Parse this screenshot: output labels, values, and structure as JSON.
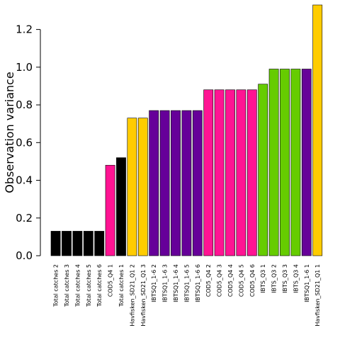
{
  "chart_data": {
    "type": "bar",
    "title": "",
    "xlabel": "",
    "ylabel": "Observation variance",
    "ylim": [
      0,
      1.33
    ],
    "yticks": [
      0.0,
      0.2,
      0.4,
      0.6,
      0.8,
      1.0,
      1.2
    ],
    "ytick_labels": [
      "0.0",
      "0.2",
      "0.4",
      "0.6",
      "0.8",
      "1.0",
      "1.2"
    ],
    "grid": false,
    "legend": "none",
    "bars": [
      {
        "category": "Total catches 2",
        "value": 0.13,
        "color": "#000000"
      },
      {
        "category": "Total catches 3",
        "value": 0.13,
        "color": "#000000"
      },
      {
        "category": "Total catches 4",
        "value": 0.13,
        "color": "#000000"
      },
      {
        "category": "Total catches 5",
        "value": 0.13,
        "color": "#000000"
      },
      {
        "category": "Total catches 6",
        "value": 0.13,
        "color": "#000000"
      },
      {
        "category": "COD5_Q4 1",
        "value": 0.48,
        "color": "#FF1493"
      },
      {
        "category": "Total catches 1",
        "value": 0.52,
        "color": "#000000"
      },
      {
        "category": "Havfisken_SD21_Q1 2",
        "value": 0.73,
        "color": "#FFCC00"
      },
      {
        "category": "Havfisken_SD21_Q1 3",
        "value": 0.73,
        "color": "#FFCC00"
      },
      {
        "category": "IBTSQ1_1-6 2",
        "value": 0.77,
        "color": "#660099"
      },
      {
        "category": "IBTSQ1_1-6 3",
        "value": 0.77,
        "color": "#660099"
      },
      {
        "category": "IBTSQ1_1-6 4",
        "value": 0.77,
        "color": "#660099"
      },
      {
        "category": "IBTSQ1_1-6 5",
        "value": 0.77,
        "color": "#660099"
      },
      {
        "category": "IBTSQ1_1-6 6",
        "value": 0.77,
        "color": "#660099"
      },
      {
        "category": "COD5_Q4 2",
        "value": 0.88,
        "color": "#FF1493"
      },
      {
        "category": "COD5_Q4 3",
        "value": 0.88,
        "color": "#FF1493"
      },
      {
        "category": "COD5_Q4 4",
        "value": 0.88,
        "color": "#FF1493"
      },
      {
        "category": "COD5_Q4 5",
        "value": 0.88,
        "color": "#FF1493"
      },
      {
        "category": "COD5_Q4 6",
        "value": 0.88,
        "color": "#FF1493"
      },
      {
        "category": "IBTS_Q3 1",
        "value": 0.91,
        "color": "#66CC00"
      },
      {
        "category": "IBTS_Q3 2",
        "value": 0.99,
        "color": "#66CC00"
      },
      {
        "category": "IBTS_Q3 3",
        "value": 0.99,
        "color": "#66CC00"
      },
      {
        "category": "IBTS_Q3 4",
        "value": 0.99,
        "color": "#66CC00"
      },
      {
        "category": "IBTSQ1_1-6 1",
        "value": 0.99,
        "color": "#660099"
      },
      {
        "category": "Havfisken_SD21_Q1 1",
        "value": 1.33,
        "color": "#FFCC00"
      }
    ]
  }
}
